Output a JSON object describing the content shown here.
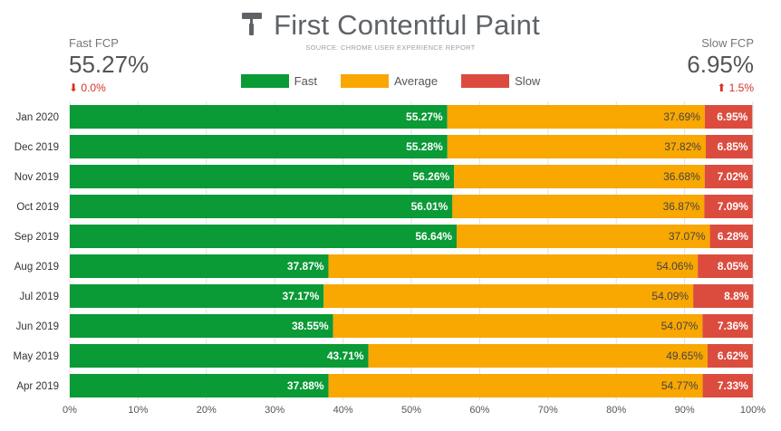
{
  "header": {
    "title": "First Contentful Paint",
    "source": "SOURCE: CHROME USER EXPERIENCE REPORT",
    "logo_icon": "paint-roller-icon"
  },
  "kpi_left": {
    "label": "Fast FCP",
    "value": "55.27%",
    "delta": "0.0%",
    "delta_icon": "arrow-down-icon"
  },
  "kpi_right": {
    "label": "Slow FCP",
    "value": "6.95%",
    "delta": "1.5%",
    "delta_icon": "arrow-up-icon"
  },
  "legend": [
    {
      "label": "Fast",
      "color": "#0a9a36"
    },
    {
      "label": "Average",
      "color": "#f9a701"
    },
    {
      "label": "Slow",
      "color": "#db4c3f"
    }
  ],
  "chart_data": {
    "type": "bar",
    "orientation": "horizontal",
    "stacked": true,
    "categories": [
      "Jan 2020",
      "Dec 2019",
      "Nov 2019",
      "Oct 2019",
      "Sep 2019",
      "Aug 2019",
      "Jul 2019",
      "Jun 2019",
      "May 2019",
      "Apr 2019"
    ],
    "series": [
      {
        "name": "Fast",
        "color": "#0a9a36",
        "values": [
          55.27,
          55.28,
          56.26,
          56.01,
          56.64,
          37.87,
          37.17,
          38.55,
          43.71,
          37.88
        ]
      },
      {
        "name": "Average",
        "color": "#f9a701",
        "values": [
          37.69,
          37.82,
          36.68,
          36.87,
          37.07,
          54.06,
          54.09,
          54.07,
          49.65,
          54.77
        ]
      },
      {
        "name": "Slow",
        "color": "#db4c3f",
        "values": [
          6.95,
          6.85,
          7.02,
          7.09,
          6.28,
          8.05,
          8.8,
          7.36,
          6.62,
          7.33
        ]
      }
    ],
    "data_labels": [
      [
        "55.27%",
        "37.69%",
        "6.95%"
      ],
      [
        "55.28%",
        "37.82%",
        "6.85%"
      ],
      [
        "56.26%",
        "36.68%",
        "7.02%"
      ],
      [
        "56.01%",
        "36.87%",
        "7.09%"
      ],
      [
        "56.64%",
        "37.07%",
        "6.28%"
      ],
      [
        "37.87%",
        "54.06%",
        "8.05%"
      ],
      [
        "37.17%",
        "54.09%",
        "8.8%"
      ],
      [
        "38.55%",
        "54.07%",
        "7.36%"
      ],
      [
        "43.71%",
        "49.65%",
        "6.62%"
      ],
      [
        "37.88%",
        "54.77%",
        "7.33%"
      ]
    ],
    "xlim": [
      0,
      100
    ],
    "xticks": [
      "0%",
      "10%",
      "20%",
      "30%",
      "40%",
      "50%",
      "60%",
      "70%",
      "80%",
      "90%",
      "100%"
    ],
    "grid": true,
    "legend_position": "top-center"
  }
}
